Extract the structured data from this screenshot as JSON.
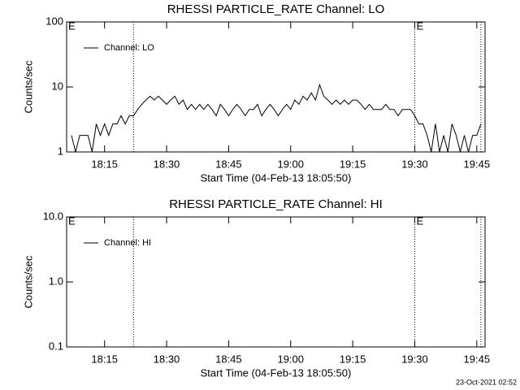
{
  "chart_data": [
    {
      "type": "line",
      "title": "RHESSI PARTICLE_RATE Channel: LO",
      "xlabel": "Start Time (04-Feb-13 18:05:50)",
      "ylabel": "Counts/sec",
      "log_y": true,
      "ylim": [
        1,
        100
      ],
      "yticks": [
        1,
        10,
        100
      ],
      "xlim": [
        5.83,
        107
      ],
      "xticks": [
        {
          "value": 15,
          "label": "18:15"
        },
        {
          "value": 30,
          "label": "18:30"
        },
        {
          "value": 45,
          "label": "18:45"
        },
        {
          "value": 60,
          "label": "19:00"
        },
        {
          "value": 75,
          "label": "19:15"
        },
        {
          "value": 90,
          "label": "19:30"
        },
        {
          "value": 105,
          "label": "19:45"
        }
      ],
      "markers": [
        22,
        90,
        106
      ],
      "annotations": [
        "E",
        "E"
      ],
      "legend": "upper left",
      "x": [
        7,
        8,
        9,
        10,
        11,
        12,
        13,
        14,
        15,
        16,
        17,
        18,
        19,
        20,
        21,
        22,
        23,
        24,
        25,
        26,
        27,
        28,
        29,
        30,
        31,
        32,
        33,
        34,
        35,
        36,
        37,
        38,
        39,
        40,
        41,
        42,
        43,
        44,
        45,
        46,
        47,
        48,
        49,
        50,
        51,
        52,
        53,
        54,
        55,
        56,
        57,
        58,
        59,
        60,
        61,
        62,
        63,
        64,
        65,
        66,
        67,
        68,
        69,
        70,
        71,
        72,
        73,
        74,
        75,
        76,
        77,
        78,
        79,
        80,
        81,
        82,
        83,
        84,
        85,
        86,
        87,
        88,
        89,
        90,
        91,
        92,
        93,
        94,
        95,
        96,
        97,
        98,
        99,
        100,
        101,
        102,
        103,
        104,
        105,
        106
      ],
      "series": [
        {
          "name": "Channel: LO",
          "color": "#000000",
          "values": [
            1.8,
            1,
            1.8,
            1.8,
            1.8,
            1,
            2.7,
            1.8,
            2.7,
            1.8,
            2.7,
            2.7,
            3.6,
            2.7,
            3.6,
            3.6,
            4.5,
            5.4,
            6.3,
            7.2,
            6.3,
            7.2,
            6.3,
            5.4,
            6.3,
            7.2,
            5.4,
            6.3,
            4.5,
            5.4,
            4.5,
            5.4,
            4.5,
            5.4,
            4.5,
            3.6,
            5.4,
            4.5,
            3.6,
            4.5,
            5.4,
            4.5,
            3.6,
            4.5,
            4.5,
            5.4,
            3.6,
            4.5,
            5.4,
            4.5,
            3.6,
            4.5,
            5.4,
            4.5,
            6.3,
            5.4,
            7.2,
            6.3,
            8.1,
            6.3,
            10.8,
            7.2,
            6.3,
            5.4,
            6.3,
            5.4,
            6.3,
            5.4,
            6.3,
            6.3,
            5.4,
            4.5,
            5.4,
            4.5,
            4.5,
            4.5,
            5.4,
            4.5,
            4.5,
            3.6,
            4.5,
            4.5,
            4.5,
            3.6,
            2.7,
            2.7,
            1.8,
            1,
            2.7,
            1,
            1.8,
            1,
            2.7,
            1.8,
            1,
            1.8,
            1,
            1.8,
            1.8,
            2.7
          ]
        }
      ]
    },
    {
      "type": "line",
      "title": "RHESSI PARTICLE_RATE Channel: HI",
      "xlabel": "Start Time (04-Feb-13 18:05:50)",
      "ylabel": "Counts/sec",
      "log_y": true,
      "ylim": [
        0.1,
        10
      ],
      "yticks": [
        {
          "value": 0.1,
          "label": "0.1"
        },
        {
          "value": 1,
          "label": "1.0"
        },
        {
          "value": 10,
          "label": "10.0"
        }
      ],
      "xlim": [
        5.83,
        107
      ],
      "xticks": [
        {
          "value": 15,
          "label": "18:15"
        },
        {
          "value": 30,
          "label": "18:30"
        },
        {
          "value": 45,
          "label": "18:45"
        },
        {
          "value": 60,
          "label": "19:00"
        },
        {
          "value": 75,
          "label": "19:15"
        },
        {
          "value": 90,
          "label": "19:30"
        },
        {
          "value": 105,
          "label": "19:45"
        }
      ],
      "markers": [
        22,
        90,
        106
      ],
      "annotations": [
        "E",
        "E"
      ],
      "legend": "upper left",
      "x": [],
      "series": [
        {
          "name": "Channel: HI",
          "color": "#000000",
          "values": []
        }
      ]
    }
  ],
  "footer": "23-Oct-2021 02:52"
}
